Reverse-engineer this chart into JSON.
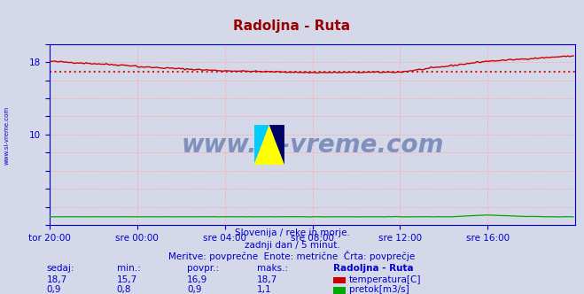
{
  "title": "Radoljna - Ruta",
  "title_color": "#990000",
  "bg_color": "#d4d8e8",
  "plot_bg_color": "#d4d8e8",
  "grid_color": "#ffaaaa",
  "axis_color": "#0000cc",
  "text_color": "#0000cc",
  "temp_avg": 16.9,
  "temp_color": "#cc0000",
  "flow_color": "#00aa00",
  "watermark": "www.si-vreme.com",
  "watermark_color": "#1a3a8a",
  "subtitle1": "Slovenija / reke in morje.",
  "subtitle2": "zadnji dan / 5 minut.",
  "subtitle3": "Meritve: povprečne  Enote: metrične  Črta: povprečje",
  "label_sedaj": "sedaj:",
  "label_min": "min.:",
  "label_povpr": "povpr.:",
  "label_maks": "maks.:",
  "label_station": "Radoljna - Ruta",
  "temp_sedaj": "18,7",
  "temp_min": "15,7",
  "temp_povpr": "16,9",
  "temp_maks": "18,7",
  "flow_sedaj": "0,9",
  "flow_min": "0,8",
  "flow_povpr": "0,9",
  "flow_maks": "1,1",
  "temp_label": "temperatura[C]",
  "flow_label": "pretok[m3/s]",
  "xtick_labels": [
    "tor 20:00",
    "sre 00:00",
    "sre 04:00",
    "sre 08:00",
    "sre 12:00",
    "sre 16:00"
  ],
  "xtick_positions": [
    0,
    48,
    96,
    144,
    192,
    240
  ],
  "left_rotated_label": "www.si-vreme.com"
}
